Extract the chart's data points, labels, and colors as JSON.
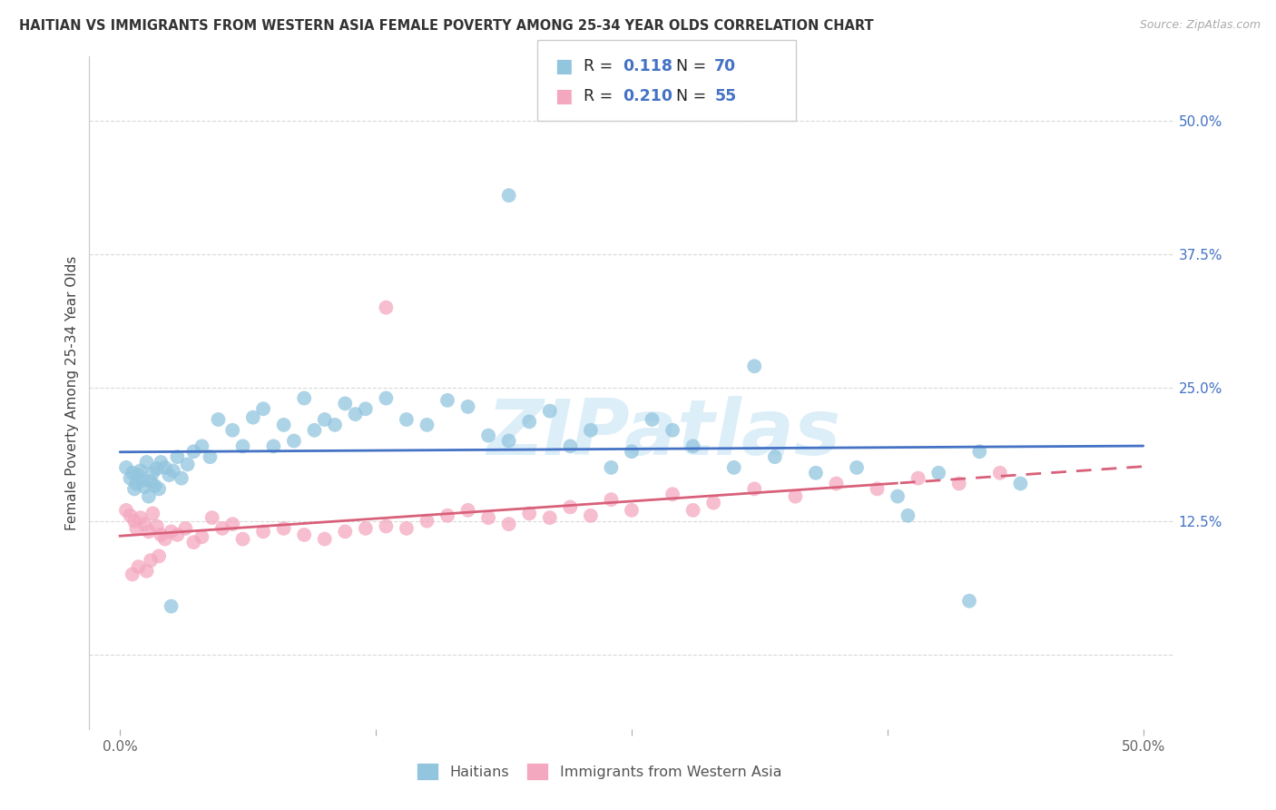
{
  "title": "HAITIAN VS IMMIGRANTS FROM WESTERN ASIA FEMALE POVERTY AMONG 25-34 YEAR OLDS CORRELATION CHART",
  "source": "Source: ZipAtlas.com",
  "ylabel": "Female Poverty Among 25-34 Year Olds",
  "label_haitians": "Haitians",
  "label_western_asia": "Immigrants from Western Asia",
  "yticks": [
    0.0,
    0.125,
    0.25,
    0.375,
    0.5
  ],
  "ytick_right_labels": [
    "",
    "12.5%",
    "25.0%",
    "37.5%",
    "50.0%"
  ],
  "xticks": [
    0.0,
    0.125,
    0.25,
    0.375,
    0.5
  ],
  "xtick_labels": [
    "0.0%",
    "",
    "",
    "",
    "50.0%"
  ],
  "blue_R": "0.118",
  "blue_N": "70",
  "pink_R": "0.210",
  "pink_N": "55",
  "blue_color": "#92c5de",
  "pink_color": "#f4a8c0",
  "blue_line_color": "#4472c4",
  "pink_line_color": "#d9607a",
  "accent_color": "#4472c4",
  "grid_color": "#d9d9d9",
  "watermark_text": "ZIPatlas",
  "watermark_color": "#dceef8",
  "blue_x": [
    0.003,
    0.005,
    0.006,
    0.007,
    0.008,
    0.009,
    0.01,
    0.011,
    0.012,
    0.013,
    0.014,
    0.015,
    0.016,
    0.017,
    0.018,
    0.019,
    0.02,
    0.022,
    0.024,
    0.026,
    0.028,
    0.03,
    0.033,
    0.036,
    0.04,
    0.044,
    0.048,
    0.055,
    0.06,
    0.065,
    0.07,
    0.075,
    0.08,
    0.085,
    0.09,
    0.095,
    0.1,
    0.105,
    0.11,
    0.115,
    0.12,
    0.13,
    0.14,
    0.15,
    0.16,
    0.17,
    0.18,
    0.19,
    0.2,
    0.21,
    0.22,
    0.23,
    0.24,
    0.25,
    0.26,
    0.27,
    0.28,
    0.3,
    0.32,
    0.34,
    0.36,
    0.38,
    0.4,
    0.42,
    0.44,
    0.19,
    0.31,
    0.025,
    0.415,
    0.385
  ],
  "blue_y": [
    0.175,
    0.165,
    0.17,
    0.155,
    0.16,
    0.168,
    0.172,
    0.163,
    0.157,
    0.18,
    0.148,
    0.162,
    0.17,
    0.158,
    0.174,
    0.155,
    0.18,
    0.175,
    0.168,
    0.172,
    0.185,
    0.165,
    0.178,
    0.19,
    0.195,
    0.185,
    0.22,
    0.21,
    0.195,
    0.222,
    0.23,
    0.195,
    0.215,
    0.2,
    0.24,
    0.21,
    0.22,
    0.215,
    0.235,
    0.225,
    0.23,
    0.24,
    0.22,
    0.215,
    0.238,
    0.232,
    0.205,
    0.2,
    0.218,
    0.228,
    0.195,
    0.21,
    0.175,
    0.19,
    0.22,
    0.21,
    0.195,
    0.175,
    0.185,
    0.17,
    0.175,
    0.148,
    0.17,
    0.19,
    0.16,
    0.43,
    0.27,
    0.045,
    0.05,
    0.13
  ],
  "pink_x": [
    0.003,
    0.005,
    0.007,
    0.008,
    0.01,
    0.012,
    0.014,
    0.016,
    0.018,
    0.02,
    0.022,
    0.025,
    0.028,
    0.032,
    0.036,
    0.04,
    0.045,
    0.05,
    0.055,
    0.06,
    0.07,
    0.08,
    0.09,
    0.1,
    0.11,
    0.12,
    0.13,
    0.14,
    0.15,
    0.16,
    0.17,
    0.18,
    0.19,
    0.2,
    0.21,
    0.22,
    0.23,
    0.24,
    0.25,
    0.27,
    0.29,
    0.31,
    0.33,
    0.35,
    0.37,
    0.39,
    0.41,
    0.43,
    0.13,
    0.28,
    0.006,
    0.009,
    0.013,
    0.015,
    0.019
  ],
  "pink_y": [
    0.135,
    0.13,
    0.125,
    0.118,
    0.128,
    0.122,
    0.115,
    0.132,
    0.12,
    0.112,
    0.108,
    0.115,
    0.112,
    0.118,
    0.105,
    0.11,
    0.128,
    0.118,
    0.122,
    0.108,
    0.115,
    0.118,
    0.112,
    0.108,
    0.115,
    0.118,
    0.12,
    0.118,
    0.125,
    0.13,
    0.135,
    0.128,
    0.122,
    0.132,
    0.128,
    0.138,
    0.13,
    0.145,
    0.135,
    0.15,
    0.142,
    0.155,
    0.148,
    0.16,
    0.155,
    0.165,
    0.16,
    0.17,
    0.325,
    0.135,
    0.075,
    0.082,
    0.078,
    0.088,
    0.092
  ]
}
